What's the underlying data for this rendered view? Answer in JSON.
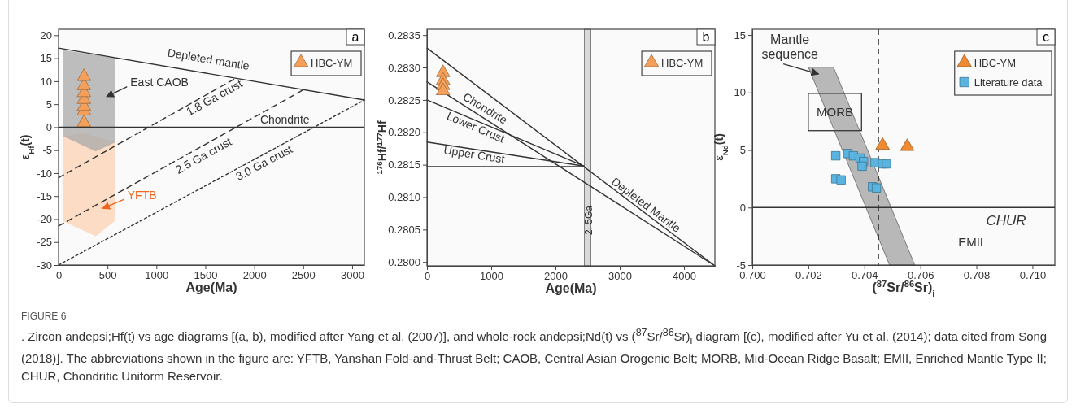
{
  "chart_data": [
    {
      "type": "scatter",
      "title": "a",
      "xlabel": "Age(Ma)",
      "ylabel": "ε$_{Hf}$(t)",
      "xlim": [
        0,
        3125
      ],
      "ylim": [
        -30,
        21.3
      ],
      "xticks": [
        0,
        500,
        1000,
        1500,
        2000,
        2500,
        3000
      ],
      "yticks": [
        -30,
        -25,
        -20,
        -15,
        -10,
        -5,
        0,
        5,
        10,
        15,
        20
      ],
      "legend": "top right",
      "series": [
        {
          "type": "line",
          "color": "#333333",
          "line_style": "solid",
          "x": [
            0,
            3125
          ],
          "values": [
            17.2,
            5.9
          ]
        },
        {
          "type": "line",
          "color": "#333333",
          "line_style": "dashed",
          "x": [
            0,
            1800
          ],
          "values": [
            -11,
            10.5
          ]
        },
        {
          "type": "line",
          "color": "#333333",
          "line_style": "dashed",
          "x": [
            0,
            2500
          ],
          "values": [
            -21.5,
            8.1
          ]
        },
        {
          "type": "line",
          "color": "#333333",
          "line_style": "dotted",
          "x": [
            0,
            3125
          ],
          "values": [
            -30,
            5.9
          ]
        },
        {
          "name": "HBC-YM",
          "color": "#f4a05a",
          "marker": "triangle",
          "x": [
            260,
            260,
            260,
            260,
            260,
            260,
            260
          ],
          "values": [
            1,
            3.5,
            4.5,
            6,
            7.5,
            9,
            11
          ]
        }
      ],
      "ref_lines": [
        {
          "axis": "y",
          "value": 0,
          "label": "Chondrite",
          "color": "#333333",
          "line_style": "solid"
        }
      ],
      "annotations": [
        "Depleted mantle",
        "1.8 Ga crust",
        "2.5 Ga crust",
        "3.0 Ga crust",
        "East CAOB",
        "YFTB",
        "FIGURE 6",
        ". Zircon andepsi;Hf(t) vs age diagrams [(a, b), modified after Yang et al. (2007)], and whole-rock andepsi;Nd(t) vs ($^{87}$Sr/$^{86}$Sr)$_{i}$ diagram [(c), modified after Yu et al. (2014); data cited from Song (2018)]. The abbreviations shown in the figure are: YFTB, Yanshan Fold-and-Thrust Belt; CAOB, Central Asian Orogenic Belt; MORB, Mid-Ocean Ridge Basalt; EMII, Enriched Mantle Type II; CHUR, Chondritic Uniform Reservoir."
      ]
    },
    {
      "type": "scatter",
      "title": "b",
      "xlabel": "Age(Ma)",
      "ylabel": "$^{176}$Hf/$^{177}$Hf",
      "xlim": [
        0,
        4480
      ],
      "ylim": [
        0.27994,
        0.28359
      ],
      "xticks": [
        0,
        1000,
        2000,
        3000,
        4000
      ],
      "yticks": [
        {
          "value": 0.28,
          "label": "0.2800"
        },
        {
          "value": 0.2805,
          "label": "0.2805"
        },
        {
          "value": 0.281,
          "label": "0.2810"
        },
        {
          "value": 0.2815,
          "label": "0.2815"
        },
        {
          "value": 0.282,
          "label": "0.2820"
        },
        {
          "value": 0.2825,
          "label": "0.2825"
        },
        {
          "value": 0.283,
          "label": "0.2830"
        },
        {
          "value": 0.2835,
          "label": "0.2835"
        }
      ],
      "legend": "top right",
      "series": [
        {
          "type": "line",
          "color": "#333333",
          "line_style": "solid",
          "x": [
            0,
            4480
          ],
          "values": [
            0.2833,
            0.27994
          ]
        },
        {
          "type": "line",
          "color": "#333333",
          "line_style": "solid",
          "x": [
            0,
            4480
          ],
          "values": [
            0.28278,
            0.27994
          ]
        },
        {
          "type": "line",
          "color": "#333333",
          "line_style": "solid",
          "x": [
            0,
            2440
          ],
          "values": [
            0.2825,
            0.28148
          ]
        },
        {
          "type": "line",
          "color": "#333333",
          "line_style": "solid",
          "x": [
            0,
            2440
          ],
          "values": [
            0.28185,
            0.28148
          ]
        },
        {
          "type": "line",
          "color": "#333333",
          "line_style": "solid",
          "x": [
            0,
            2440
          ],
          "values": [
            0.28147,
            0.28147
          ]
        },
        {
          "name": "HBC-YM",
          "color": "#f4a05a",
          "marker": "triangle",
          "x": [
            250,
            250,
            250,
            250
          ],
          "values": [
            0.28292,
            0.2828,
            0.28272,
            0.28264
          ]
        }
      ],
      "bands": [
        {
          "axis": "x",
          "from": 2450,
          "to": 2550,
          "label": "2. 5Ga",
          "color": "#d9d9d9"
        }
      ],
      "annotations": [
        "Chondrite",
        "Lower Crust",
        "Upper Crust",
        "Depleted Mantle"
      ]
    },
    {
      "type": "scatter",
      "title": "c",
      "xlabel": "($^{87}$Sr/$^{86}$Sr)$_{i}$",
      "ylabel": "ε$_{Nd}$(t)",
      "xlim": [
        0.7,
        0.7108
      ],
      "ylim": [
        -5,
        15.5
      ],
      "xticks": [
        {
          "value": 0.7,
          "label": "0.700"
        },
        {
          "value": 0.702,
          "label": "0.702"
        },
        {
          "value": 0.704,
          "label": "0.704"
        },
        {
          "value": 0.706,
          "label": "0.706"
        },
        {
          "value": 0.708,
          "label": "0.708"
        },
        {
          "value": 0.71,
          "label": "0.710"
        }
      ],
      "yticks": [
        -5,
        0,
        5,
        10,
        15
      ],
      "legend": "top right",
      "series": [
        {
          "name": "HBC-YM",
          "color": "#f08a30",
          "marker": "triangle",
          "x": [
            0.70465,
            0.70553
          ],
          "values": [
            5.4,
            5.3
          ]
        },
        {
          "name": "Literature data",
          "color": "#5bb4e0",
          "marker": "square",
          "x": [
            0.70298,
            0.70341,
            0.70361,
            0.70385,
            0.70397,
            0.70392,
            0.70438,
            0.70465,
            0.70479,
            0.70298,
            0.70317,
            0.70429,
            0.70443
          ],
          "values": [
            4.5,
            4.7,
            4.5,
            4.3,
            4,
            3.6,
            3.9,
            3.8,
            3.8,
            2.5,
            2.4,
            1.8,
            1.7
          ]
        }
      ],
      "ref_lines": [
        {
          "axis": "x",
          "value": 0.7045,
          "color": "#1a1a1a",
          "line_style": "dashed"
        },
        {
          "axis": "y",
          "value": 0,
          "label": "CHUR",
          "color": "#333333",
          "line_style": "solid"
        }
      ],
      "annotations": [
        "Mantle sequence",
        "MORB",
        "EMII"
      ]
    }
  ]
}
